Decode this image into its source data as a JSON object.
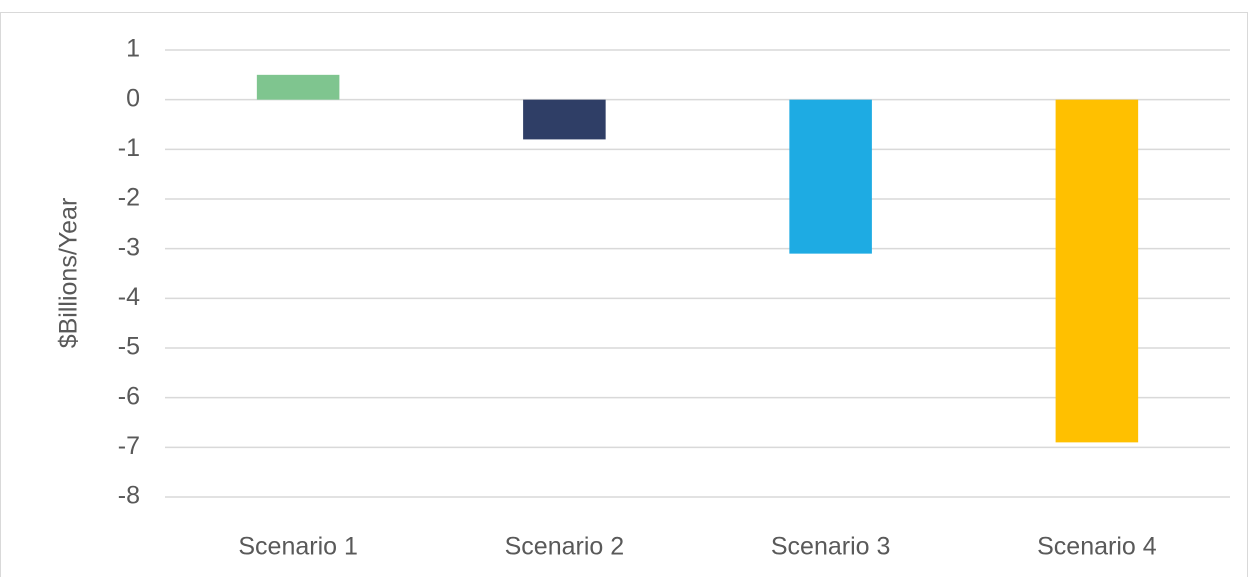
{
  "chart_data": {
    "type": "bar",
    "y_label": "$Billions/Year",
    "categories": [
      "Scenario 1",
      "Scenario 2",
      "Scenario 3",
      "Scenario 4"
    ],
    "values": [
      0.5,
      -0.8,
      -3.1,
      -6.9
    ],
    "colors": [
      "#7fc58f",
      "#2f3e66",
      "#1eabe3",
      "#ffc000"
    ],
    "ylim": [
      -8,
      1
    ],
    "yticks": [
      1,
      0,
      -1,
      -2,
      -3,
      -4,
      -5,
      -6,
      -7,
      -8
    ],
    "grid": true
  }
}
